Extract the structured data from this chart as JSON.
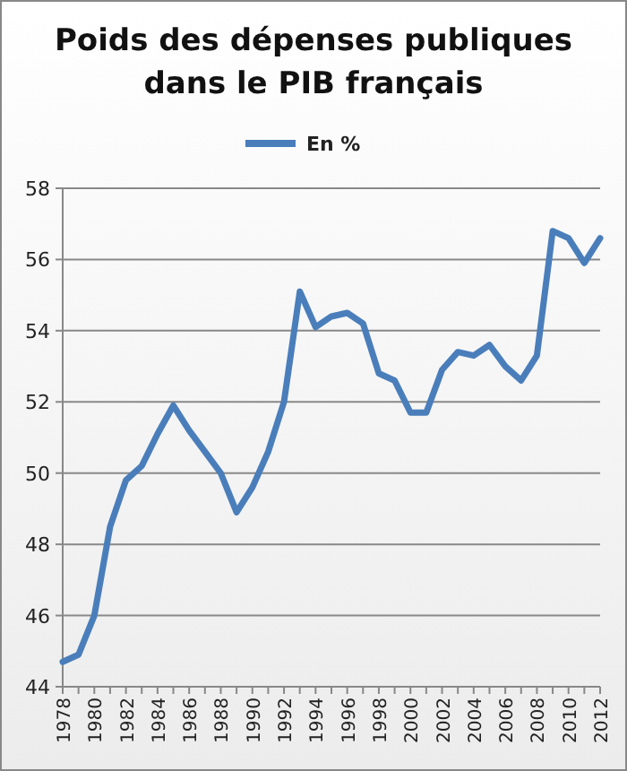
{
  "chart_data": {
    "type": "line",
    "title": "Poids des dépenses publiques\ndans le PIB français",
    "categories": [
      "1978",
      null,
      "1980",
      null,
      "1982",
      null,
      "1984",
      null,
      "1986",
      null,
      "1988",
      null,
      "1990",
      null,
      "1992",
      null,
      "1994",
      null,
      "1996",
      null,
      "1998",
      null,
      "2000",
      null,
      "2002",
      null,
      "2004",
      null,
      "2006",
      null,
      "2008",
      null,
      "2010",
      null,
      "2012"
    ],
    "series": [
      {
        "name": "En %",
        "color": "#4a7ebb",
        "values": [
          44.7,
          44.9,
          46.0,
          48.5,
          49.8,
          50.2,
          51.1,
          51.9,
          51.2,
          50.6,
          50.0,
          48.9,
          49.6,
          50.6,
          52.0,
          55.1,
          54.1,
          54.4,
          54.5,
          54.2,
          52.8,
          52.6,
          51.7,
          51.7,
          52.9,
          53.4,
          53.3,
          53.6,
          53.0,
          52.6,
          53.3,
          56.8,
          56.6,
          55.9,
          56.6
        ]
      }
    ],
    "ylim": [
      44,
      58
    ],
    "yticks": [
      44,
      46,
      48,
      50,
      52,
      54,
      56,
      58
    ],
    "grid": "y",
    "legend": "top",
    "marker": "none",
    "line_style": "solid"
  }
}
